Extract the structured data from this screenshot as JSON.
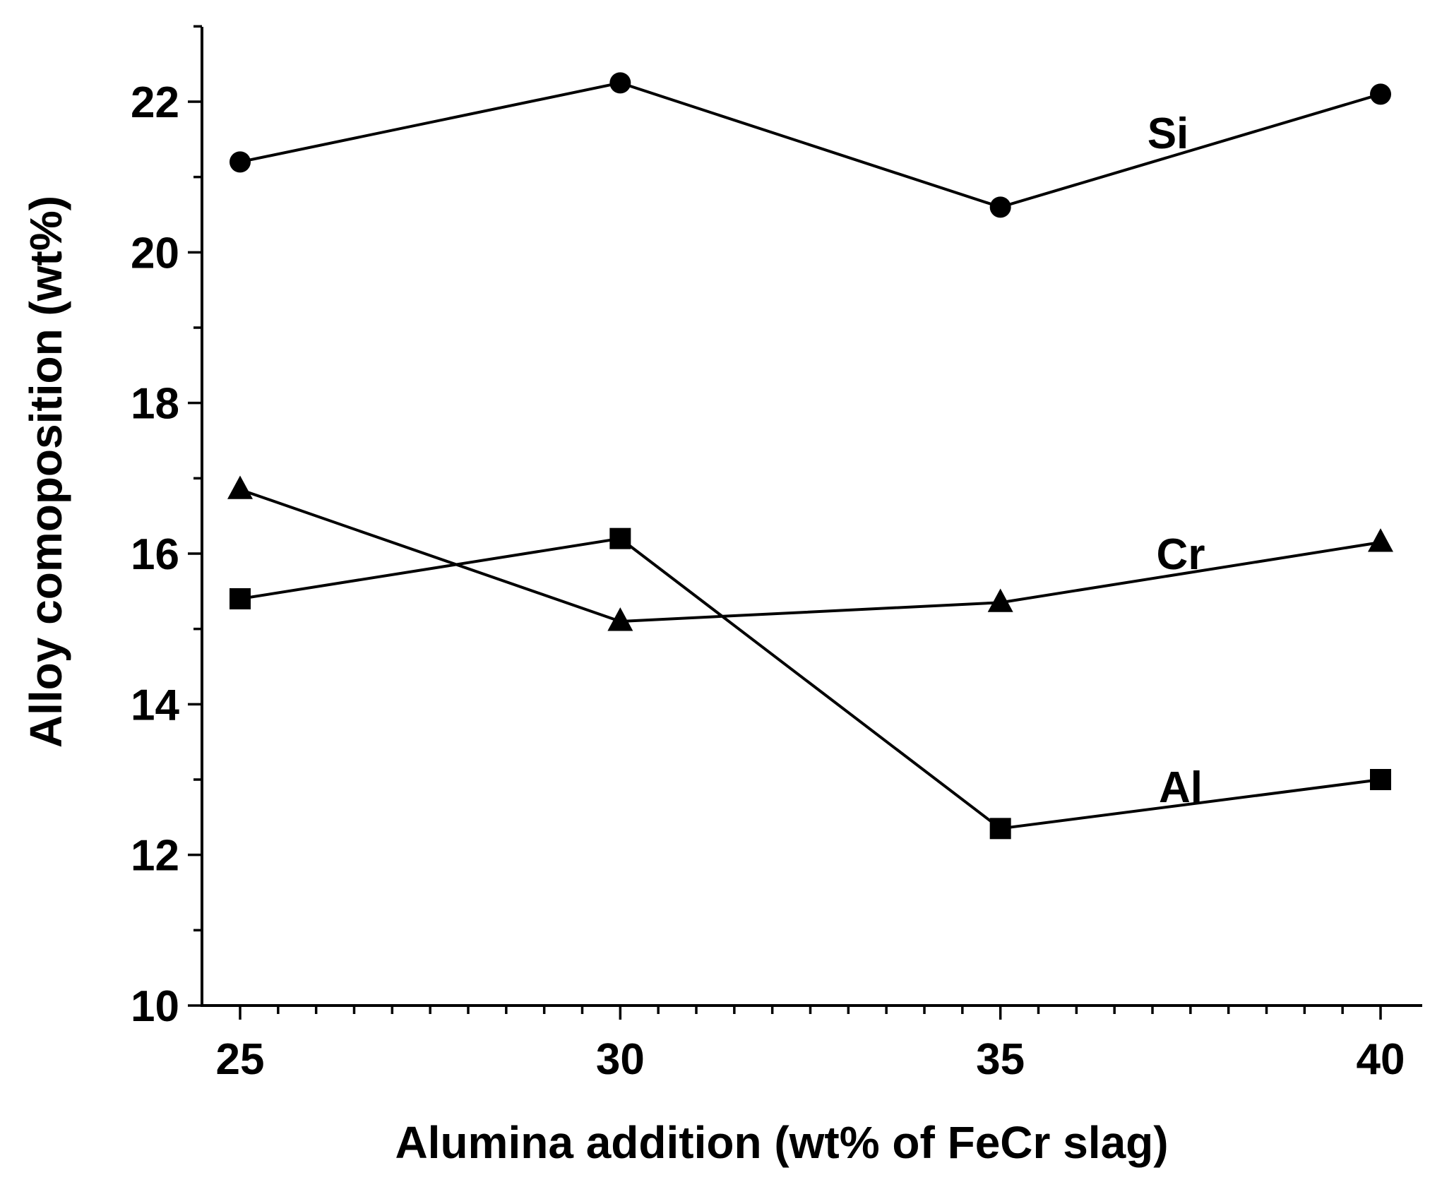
{
  "chart_data": {
    "type": "line",
    "title": "",
    "xlabel": "Alumina addition (wt% of FeCr slag)",
    "ylabel": "Alloy comoposition (wt%)",
    "x": [
      25,
      30,
      35,
      40
    ],
    "xlim": [
      24.5,
      40.5
    ],
    "ylim": [
      10,
      23
    ],
    "xticks": [
      "25",
      "30",
      "35",
      "40"
    ],
    "yticks": [
      "10",
      "12",
      "14",
      "16",
      "18",
      "20",
      "22"
    ],
    "grid": false,
    "series": [
      {
        "name": "Si",
        "marker": "circle",
        "values": [
          21.2,
          22.25,
          20.6,
          22.1
        ]
      },
      {
        "name": "Cr",
        "marker": "triangle",
        "values": [
          16.85,
          15.1,
          15.35,
          16.15
        ]
      },
      {
        "name": "Al",
        "marker": "square",
        "values": [
          15.4,
          16.2,
          12.35,
          13.0
        ]
      }
    ],
    "series_labels": [
      {
        "series": "Si",
        "text": "Si"
      },
      {
        "series": "Cr",
        "text": "Cr"
      },
      {
        "series": "Al",
        "text": "Al"
      }
    ]
  }
}
